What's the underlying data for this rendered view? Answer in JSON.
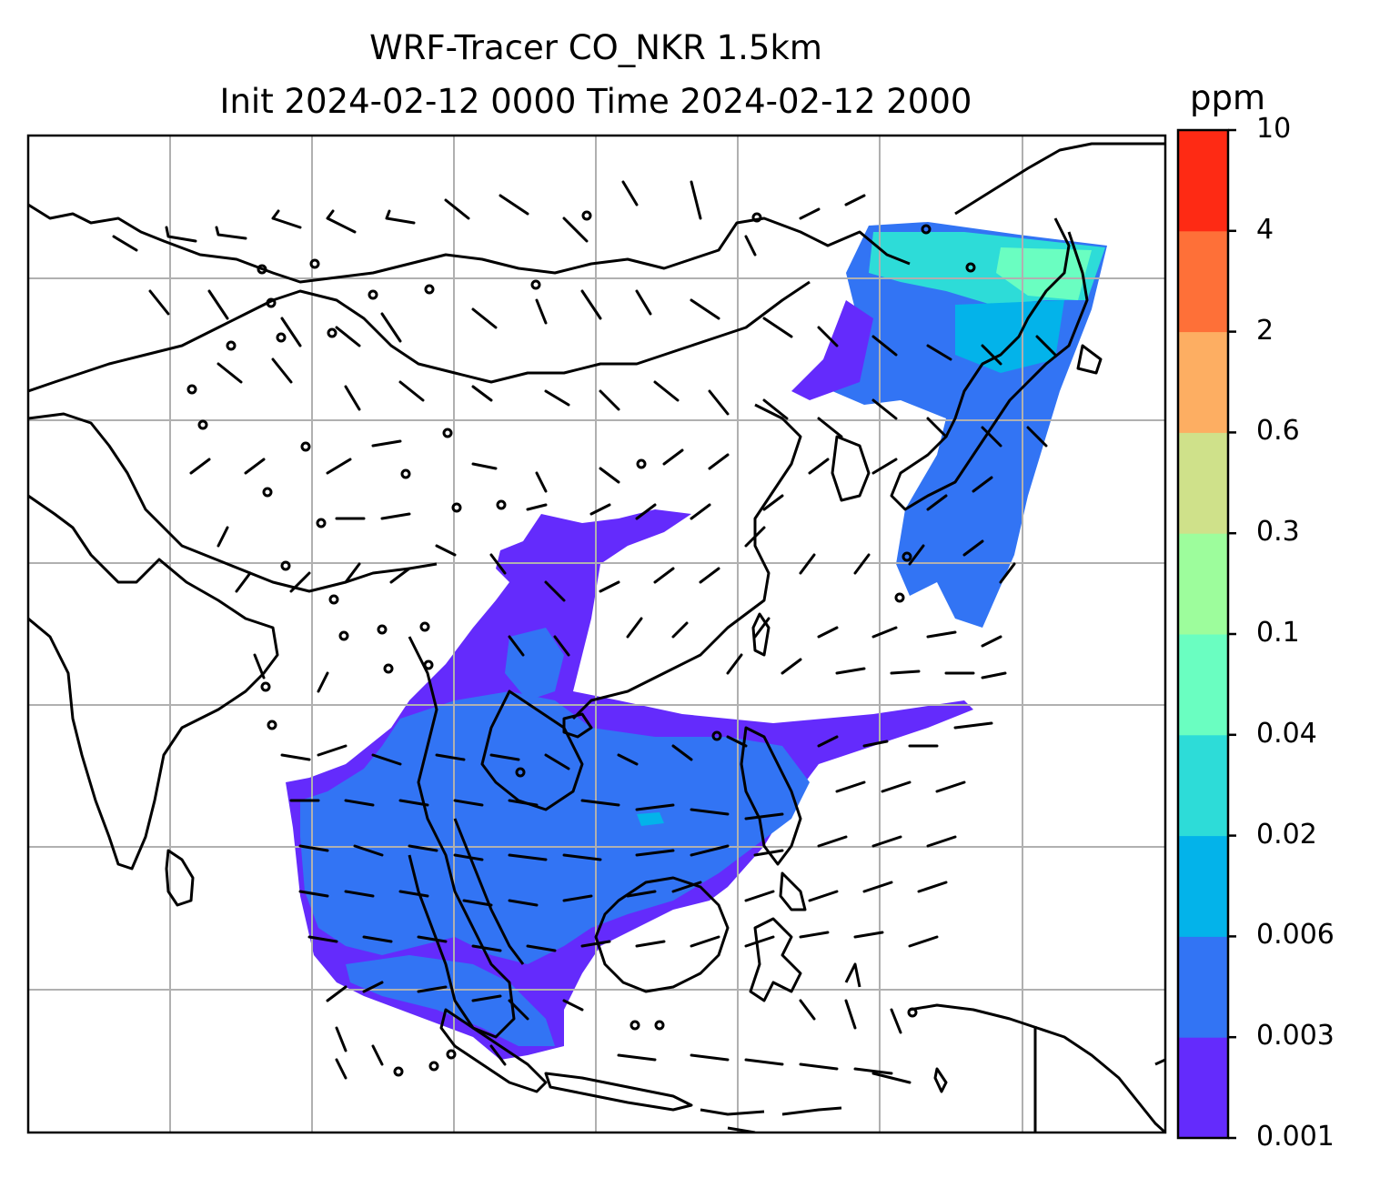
{
  "title": {
    "line1": "WRF-Tracer CO_NKR 1.5km",
    "line2": "Init 2024-02-12 0000 Time 2024-02-12 2000"
  },
  "colorbar": {
    "unit": "ppm",
    "levels": [
      "0.001",
      "0.003",
      "0.006",
      "0.02",
      "0.04",
      "0.1",
      "0.3",
      "0.6",
      "2",
      "4",
      "10"
    ],
    "colors": [
      "#642bfc",
      "#3274f4",
      "#03b3ea",
      "#2ddcd8",
      "#6afec1",
      "#9dfd9c",
      "#cfe18a",
      "#fdae62",
      "#fe7038",
      "#fe2a14"
    ]
  },
  "map": {
    "gridlines": true,
    "coastline_color": "#000000",
    "wind_barbs": true
  }
}
